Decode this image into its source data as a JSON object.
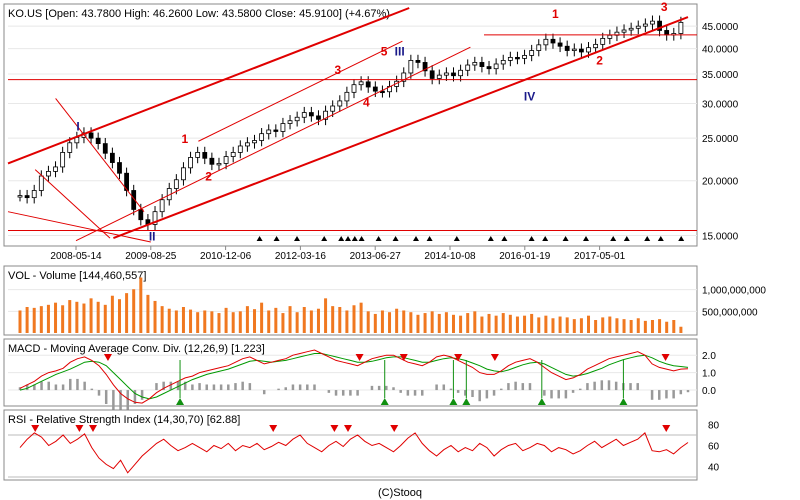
{
  "colors": {
    "price_line": "#e00000",
    "candle": "#000000",
    "volume_bar": "#f07820",
    "macd_signal": "#009900",
    "macd_hist": "#999999",
    "rsi_line": "#e00000",
    "marker_sell": "#e00000",
    "marker_buy": "#109010",
    "wave_blue": "#1a1a8a",
    "frame": "#888888",
    "grid": "#e8e8e8"
  },
  "footer": "(C)Stooq",
  "chart_data": [
    {
      "type": "candlestick",
      "title": "KO.US [Open: 43.7800   High: 46.2600   Low: 43.5800   Close: 45.9100] (+4.67%)",
      "scale": "log",
      "ylim": [
        14.5,
        49.5
      ],
      "y_ticks": [
        "45.0000",
        "40.0000",
        "35.0000",
        "30.0000",
        "25.0000",
        "20.0000",
        "15.0000"
      ],
      "y_tick_values": [
        45,
        40,
        35,
        30,
        25,
        20,
        15
      ],
      "x_ticks": [
        "2008-05-14",
        "2009-08-25",
        "2010-12-06",
        "2012-03-16",
        "2013-06-27",
        "2014-10-08",
        "2016-01-19",
        "2017-05-01"
      ],
      "x_tick_t": [
        0.1,
        0.21,
        0.32,
        0.43,
        0.54,
        0.65,
        0.76,
        0.87
      ],
      "close_series": [
        18.5,
        18.3,
        19.0,
        20.5,
        21.0,
        21.5,
        23.2,
        24.4,
        25.1,
        25.7,
        25.0,
        24.3,
        23.1,
        22.0,
        20.8,
        19.0,
        17.2,
        16.3,
        15.9,
        17.0,
        18.1,
        19.2,
        20.1,
        21.4,
        22.6,
        23.2,
        22.5,
        21.8,
        21.9,
        22.7,
        23.2,
        24.0,
        24.4,
        24.7,
        25.6,
        26.1,
        25.9,
        27.0,
        27.4,
        27.9,
        28.6,
        28.1,
        27.6,
        28.8,
        29.6,
        30.4,
        31.8,
        33.1,
        33.6,
        32.7,
        32.0,
        31.9,
        32.8,
        33.7,
        35.2,
        37.6,
        37.2,
        35.6,
        34.2,
        34.8,
        35.2,
        34.7,
        35.7,
        36.7,
        37.2,
        36.4,
        36.0,
        36.9,
        37.6,
        38.2,
        38.0,
        38.6,
        39.6,
        40.8,
        42.0,
        41.2,
        40.5,
        39.6,
        39.9,
        39.3,
        40.2,
        40.9,
        42.2,
        42.9,
        43.6,
        44.1,
        44.5,
        45.0,
        45.5,
        46.2,
        44.0,
        43.0,
        43.3,
        45.9
      ],
      "trend_channel_lines": [
        {
          "name": "outer channel upper",
          "from": {
            "t": 0.0,
            "price": 21.9
          },
          "to": {
            "t": 0.59,
            "price": 49.5
          }
        },
        {
          "name": "main support",
          "from": {
            "t": 0.155,
            "price": 14.8
          },
          "to": {
            "t": 1.0,
            "price": 47.2
          }
        },
        {
          "name": "inner channel lower",
          "from": {
            "t": 0.1,
            "price": 14.6
          },
          "to": {
            "t": 0.68,
            "price": 40.3
          }
        },
        {
          "name": "inner channel upper",
          "from": {
            "t": 0.28,
            "price": 24.6
          },
          "to": {
            "t": 0.58,
            "price": 41.6
          }
        },
        {
          "name": "outer channel lower",
          "from": {
            "t": 0.0,
            "price": 17.0
          },
          "to": {
            "t": 0.21,
            "price": 14.5
          }
        },
        {
          "name": "2008 decline upper",
          "from": {
            "t": 0.07,
            "price": 30.8
          },
          "to": {
            "t": 0.2,
            "price": 17.0
          }
        },
        {
          "name": "2008 decline lower",
          "from": {
            "t": 0.04,
            "price": 21.2
          },
          "to": {
            "t": 0.15,
            "price": 14.8
          }
        }
      ],
      "horizontal_lines": [
        {
          "price": 43.0,
          "t_from": 0.7,
          "t_to": 1.0
        },
        {
          "price": 34.0,
          "t_from": 0.0,
          "t_to": 1.0
        },
        {
          "price": 15.4,
          "t_from": 0.0,
          "t_to": 1.0
        }
      ],
      "wave_labels": [
        {
          "text": "I",
          "t": 0.103,
          "price": 26.0,
          "color": "blue"
        },
        {
          "text": "II",
          "t": 0.212,
          "price": 14.6,
          "color": "blue"
        },
        {
          "text": "1",
          "t": 0.26,
          "price": 24.4,
          "color": "red"
        },
        {
          "text": "2",
          "t": 0.295,
          "price": 20.0,
          "color": "red"
        },
        {
          "text": "3",
          "t": 0.485,
          "price": 35.0,
          "color": "red"
        },
        {
          "text": "4",
          "t": 0.527,
          "price": 29.5,
          "color": "red"
        },
        {
          "text": "5",
          "t": 0.553,
          "price": 38.6,
          "color": "red"
        },
        {
          "text": "III",
          "t": 0.576,
          "price": 38.6,
          "color": "blue"
        },
        {
          "text": "IV",
          "t": 0.767,
          "price": 30.5,
          "color": "blue"
        },
        {
          "text": "1",
          "t": 0.805,
          "price": 47.0,
          "color": "red"
        },
        {
          "text": "2",
          "t": 0.87,
          "price": 36.8,
          "color": "red"
        },
        {
          "text": "3",
          "t": 0.965,
          "price": 48.7,
          "color": "red"
        }
      ],
      "signal_triangles_t": [
        0.37,
        0.395,
        0.425,
        0.465,
        0.49,
        0.5,
        0.51,
        0.52,
        0.545,
        0.57,
        0.6,
        0.62,
        0.66,
        0.71,
        0.73,
        0.77,
        0.79,
        0.82,
        0.85,
        0.89,
        0.91,
        0.94,
        0.96,
        0.99
      ]
    },
    {
      "type": "bar",
      "title": "VOL - Volume [144,460,557]",
      "ylim": [
        0,
        1500000000
      ],
      "y_ticks": [
        "1,000,000,000",
        "500,000,000"
      ],
      "y_tick_values": [
        1000000000,
        500000000
      ],
      "values": [
        520000000,
        600000000,
        580000000,
        620000000,
        650000000,
        700000000,
        640000000,
        760000000,
        720000000,
        680000000,
        800000000,
        720000000,
        650000000,
        860000000,
        780000000,
        920000000,
        1010000000,
        1280000000,
        880000000,
        740000000,
        620000000,
        560000000,
        520000000,
        600000000,
        540000000,
        480000000,
        520000000,
        500000000,
        460000000,
        580000000,
        480000000,
        500000000,
        620000000,
        550000000,
        700000000,
        520000000,
        580000000,
        460000000,
        620000000,
        480000000,
        600000000,
        520000000,
        560000000,
        800000000,
        620000000,
        600000000,
        520000000,
        640000000,
        700000000,
        500000000,
        440000000,
        520000000,
        480000000,
        560000000,
        520000000,
        480000000,
        420000000,
        460000000,
        500000000,
        440000000,
        480000000,
        420000000,
        400000000,
        460000000,
        500000000,
        380000000,
        440000000,
        400000000,
        460000000,
        420000000,
        380000000,
        400000000,
        440000000,
        360000000,
        400000000,
        340000000,
        380000000,
        360000000,
        320000000,
        340000000,
        400000000,
        300000000,
        360000000,
        380000000,
        340000000,
        320000000,
        300000000,
        340000000,
        280000000,
        300000000,
        320000000,
        260000000,
        300000000,
        144460557
      ]
    },
    {
      "type": "line",
      "title": "MACD - Moving Average Conv. Div. (12,26,9) [1.223]",
      "ylim": [
        -0.8,
        2.7
      ],
      "y_ticks": [
        "2.0",
        "1.0",
        "0.0"
      ],
      "y_tick_values": [
        2.0,
        1.0,
        0.0
      ],
      "series": [
        {
          "name": "macd",
          "values": [
            0.1,
            0.3,
            0.5,
            0.8,
            1.0,
            1.1,
            1.25,
            1.6,
            1.8,
            1.9,
            1.7,
            1.4,
            0.9,
            0.3,
            -0.2,
            -0.5,
            -0.7,
            -0.75,
            -0.5,
            -0.15,
            0.1,
            0.3,
            0.5,
            0.7,
            0.8,
            1.0,
            1.1,
            1.2,
            1.3,
            1.4,
            1.6,
            1.8,
            1.9,
            1.7,
            1.5,
            1.6,
            1.7,
            1.8,
            2.0,
            2.1,
            2.2,
            2.3,
            2.1,
            1.9,
            1.7,
            1.6,
            1.5,
            1.4,
            1.6,
            1.8,
            1.9,
            2.0,
            2.0,
            1.8,
            1.6,
            1.5,
            1.4,
            1.6,
            1.9,
            2.0,
            1.9,
            1.7,
            1.5,
            1.3,
            1.0,
            0.9,
            0.9,
            1.1,
            1.4,
            1.6,
            1.7,
            1.8,
            1.6,
            1.3,
            1.0,
            0.8,
            0.6,
            0.7,
            0.9,
            1.2,
            1.4,
            1.6,
            1.8,
            1.9,
            2.0,
            2.1,
            2.2,
            2.0,
            1.5,
            1.3,
            1.2,
            1.1,
            1.2,
            1.223
          ]
        },
        {
          "name": "signal",
          "values": [
            0.0,
            0.1,
            0.3,
            0.5,
            0.7,
            0.9,
            1.05,
            1.2,
            1.4,
            1.6,
            1.65,
            1.6,
            1.4,
            1.0,
            0.6,
            0.2,
            -0.2,
            -0.4,
            -0.5,
            -0.4,
            -0.2,
            0.0,
            0.2,
            0.4,
            0.6,
            0.75,
            0.9,
            1.0,
            1.1,
            1.2,
            1.35,
            1.5,
            1.65,
            1.7,
            1.65,
            1.6,
            1.65,
            1.7,
            1.8,
            1.9,
            2.0,
            2.1,
            2.1,
            2.0,
            1.9,
            1.8,
            1.7,
            1.6,
            1.6,
            1.65,
            1.75,
            1.85,
            1.9,
            1.9,
            1.8,
            1.7,
            1.6,
            1.6,
            1.7,
            1.8,
            1.85,
            1.8,
            1.7,
            1.55,
            1.4,
            1.2,
            1.1,
            1.05,
            1.15,
            1.3,
            1.45,
            1.55,
            1.6,
            1.5,
            1.3,
            1.1,
            0.9,
            0.8,
            0.85,
            0.95,
            1.1,
            1.25,
            1.45,
            1.6,
            1.75,
            1.85,
            1.95,
            2.0,
            1.85,
            1.65,
            1.5,
            1.4,
            1.35,
            1.3
          ]
        }
      ],
      "sell_markers_t": [
        0.147,
        0.517,
        0.582,
        0.662,
        0.716,
        0.967
      ],
      "buy_markers_t": [
        0.253,
        0.554,
        0.655,
        0.674,
        0.785,
        0.905
      ]
    },
    {
      "type": "line",
      "title": "RSI - Relative Strength Index (14,30,70) [62.88]",
      "ylim": [
        29,
        90
      ],
      "y_ticks": [
        "80",
        "60",
        "40"
      ],
      "y_tick_values": [
        80,
        60,
        40
      ],
      "band_lines": [
        70,
        30
      ],
      "series": [
        {
          "name": "rsi",
          "values": [
            58,
            66,
            72,
            68,
            60,
            64,
            70,
            62,
            66,
            71,
            58,
            48,
            42,
            38,
            46,
            34,
            42,
            50,
            56,
            62,
            66,
            60,
            55,
            58,
            62,
            58,
            54,
            60,
            57,
            62,
            55,
            60,
            58,
            62,
            56,
            59,
            63,
            60,
            66,
            70,
            62,
            58,
            54,
            60,
            64,
            59,
            66,
            70,
            64,
            60,
            62,
            58,
            54,
            60,
            67,
            72,
            62,
            55,
            50,
            56,
            60,
            54,
            58,
            55,
            62,
            58,
            50,
            56,
            60,
            62,
            55,
            58,
            62,
            60,
            54,
            58,
            56,
            52,
            55,
            60,
            64,
            58,
            62,
            66,
            60,
            63,
            66,
            72,
            55,
            54,
            56,
            52,
            58,
            62.88
          ]
        }
      ],
      "sell_markers_t": [
        0.04,
        0.105,
        0.125,
        0.39,
        0.48,
        0.5,
        0.568,
        0.968
      ]
    }
  ]
}
